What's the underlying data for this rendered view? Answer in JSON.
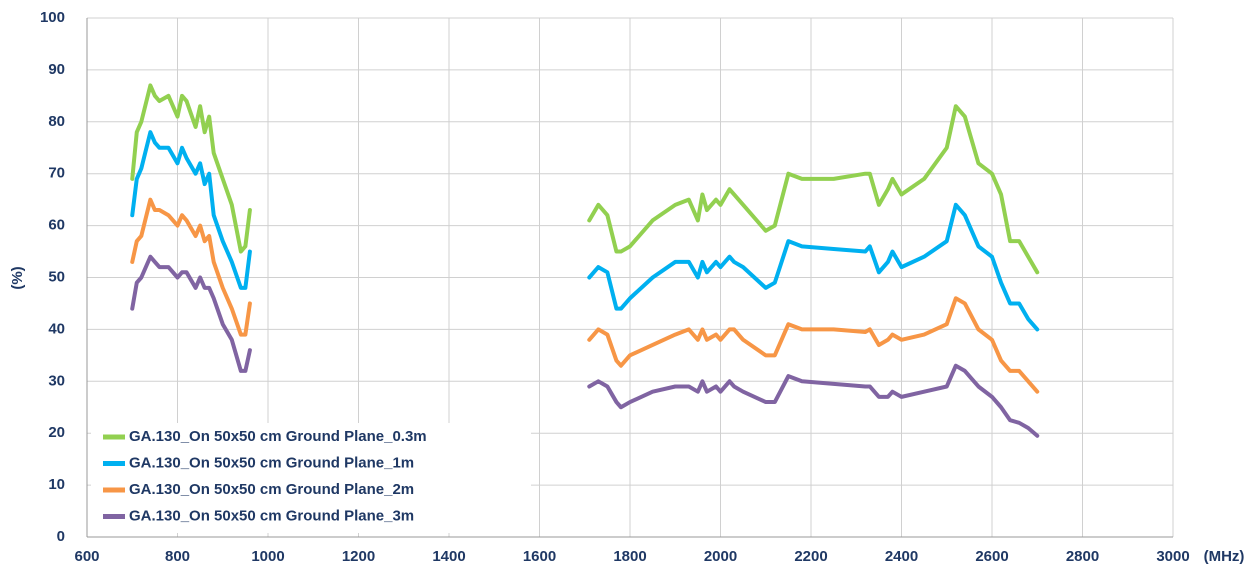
{
  "chart_data": {
    "type": "line",
    "x_label": "(MHz)",
    "y_label": "(%)",
    "xlim": [
      600,
      3000
    ],
    "xticks": [
      600,
      800,
      1000,
      1200,
      1400,
      1600,
      1800,
      2000,
      2200,
      2400,
      2600,
      2800,
      3000
    ],
    "ylim": [
      0,
      100
    ],
    "yticks": [
      0,
      10,
      20,
      30,
      40,
      50,
      60,
      70,
      80,
      90,
      100
    ],
    "grid": true,
    "legend": "lower left",
    "x": [
      700,
      710,
      720,
      740,
      750,
      760,
      780,
      800,
      810,
      820,
      840,
      850,
      860,
      870,
      880,
      900,
      920,
      940,
      950,
      960,
      1300,
      1710,
      1730,
      1750,
      1770,
      1780,
      1800,
      1850,
      1900,
      1930,
      1950,
      1960,
      1970,
      1990,
      2000,
      2020,
      2030,
      2050,
      2100,
      2120,
      2150,
      2180,
      2250,
      2320,
      2330,
      2350,
      2370,
      2380,
      2400,
      2450,
      2500,
      2520,
      2540,
      2570,
      2600,
      2620,
      2640,
      2660,
      2680,
      2700
    ],
    "series": [
      {
        "name": "GA.130_On 50x50 cm Ground Plane_0.3m",
        "color": "#92d050",
        "values": [
          69,
          78,
          80,
          87,
          85,
          84,
          85,
          81,
          85,
          84,
          79,
          83,
          78,
          81,
          74,
          69,
          64,
          55,
          56,
          63,
          null,
          61,
          64,
          62,
          55,
          55,
          56,
          61,
          64,
          65,
          61,
          66,
          63,
          65,
          64,
          67,
          66,
          64,
          59,
          60,
          70,
          69,
          69,
          70,
          70,
          64,
          67,
          69,
          66,
          69,
          75,
          83,
          81,
          72,
          70,
          66,
          57,
          57,
          54,
          51
        ]
      },
      {
        "name": "GA.130_On 50x50 cm Ground Plane_1m",
        "color": "#00b0f0",
        "values": [
          62,
          69,
          71,
          78,
          76,
          75,
          75,
          72,
          75,
          73,
          70,
          72,
          68,
          70,
          62,
          57,
          53,
          48,
          48,
          55,
          null,
          50,
          52,
          51,
          44,
          44,
          46,
          50,
          53,
          53,
          50,
          53,
          51,
          53,
          52,
          54,
          53,
          52,
          48,
          49,
          57,
          56,
          55.5,
          55,
          56,
          51,
          53,
          55,
          52,
          54,
          57,
          64,
          62,
          56,
          54,
          49,
          45,
          45,
          42,
          40
        ]
      },
      {
        "name": "GA.130_On 50x50 cm Ground Plane_2m",
        "color": "#f79646",
        "values": [
          53,
          57,
          58,
          65,
          63,
          63,
          62,
          60,
          62,
          61,
          58,
          60,
          57,
          58,
          53,
          48,
          44,
          39,
          39,
          45,
          null,
          38,
          40,
          39,
          34,
          33,
          35,
          37,
          39,
          40,
          38,
          40,
          38,
          39,
          38,
          40,
          40,
          38,
          35,
          35,
          41,
          40,
          40,
          39.5,
          40,
          37,
          38,
          39,
          38,
          39,
          41,
          46,
          45,
          40,
          38,
          34,
          32,
          32,
          30,
          28
        ]
      },
      {
        "name": "GA.130_On 50x50 cm Ground Plane_3m",
        "color": "#8064a2",
        "values": [
          44,
          49,
          50,
          54,
          53,
          52,
          52,
          50,
          51,
          51,
          48,
          50,
          48,
          48,
          46,
          41,
          38,
          32,
          32,
          36,
          null,
          29,
          30,
          29,
          26,
          25,
          26,
          28,
          29,
          29,
          28,
          30,
          28,
          29,
          28,
          30,
          29,
          28,
          26,
          26,
          31,
          30,
          29.5,
          29,
          29,
          27,
          27,
          28,
          27,
          28,
          29,
          33,
          32,
          29,
          27,
          25,
          22.5,
          22,
          21,
          19.5
        ]
      }
    ]
  }
}
